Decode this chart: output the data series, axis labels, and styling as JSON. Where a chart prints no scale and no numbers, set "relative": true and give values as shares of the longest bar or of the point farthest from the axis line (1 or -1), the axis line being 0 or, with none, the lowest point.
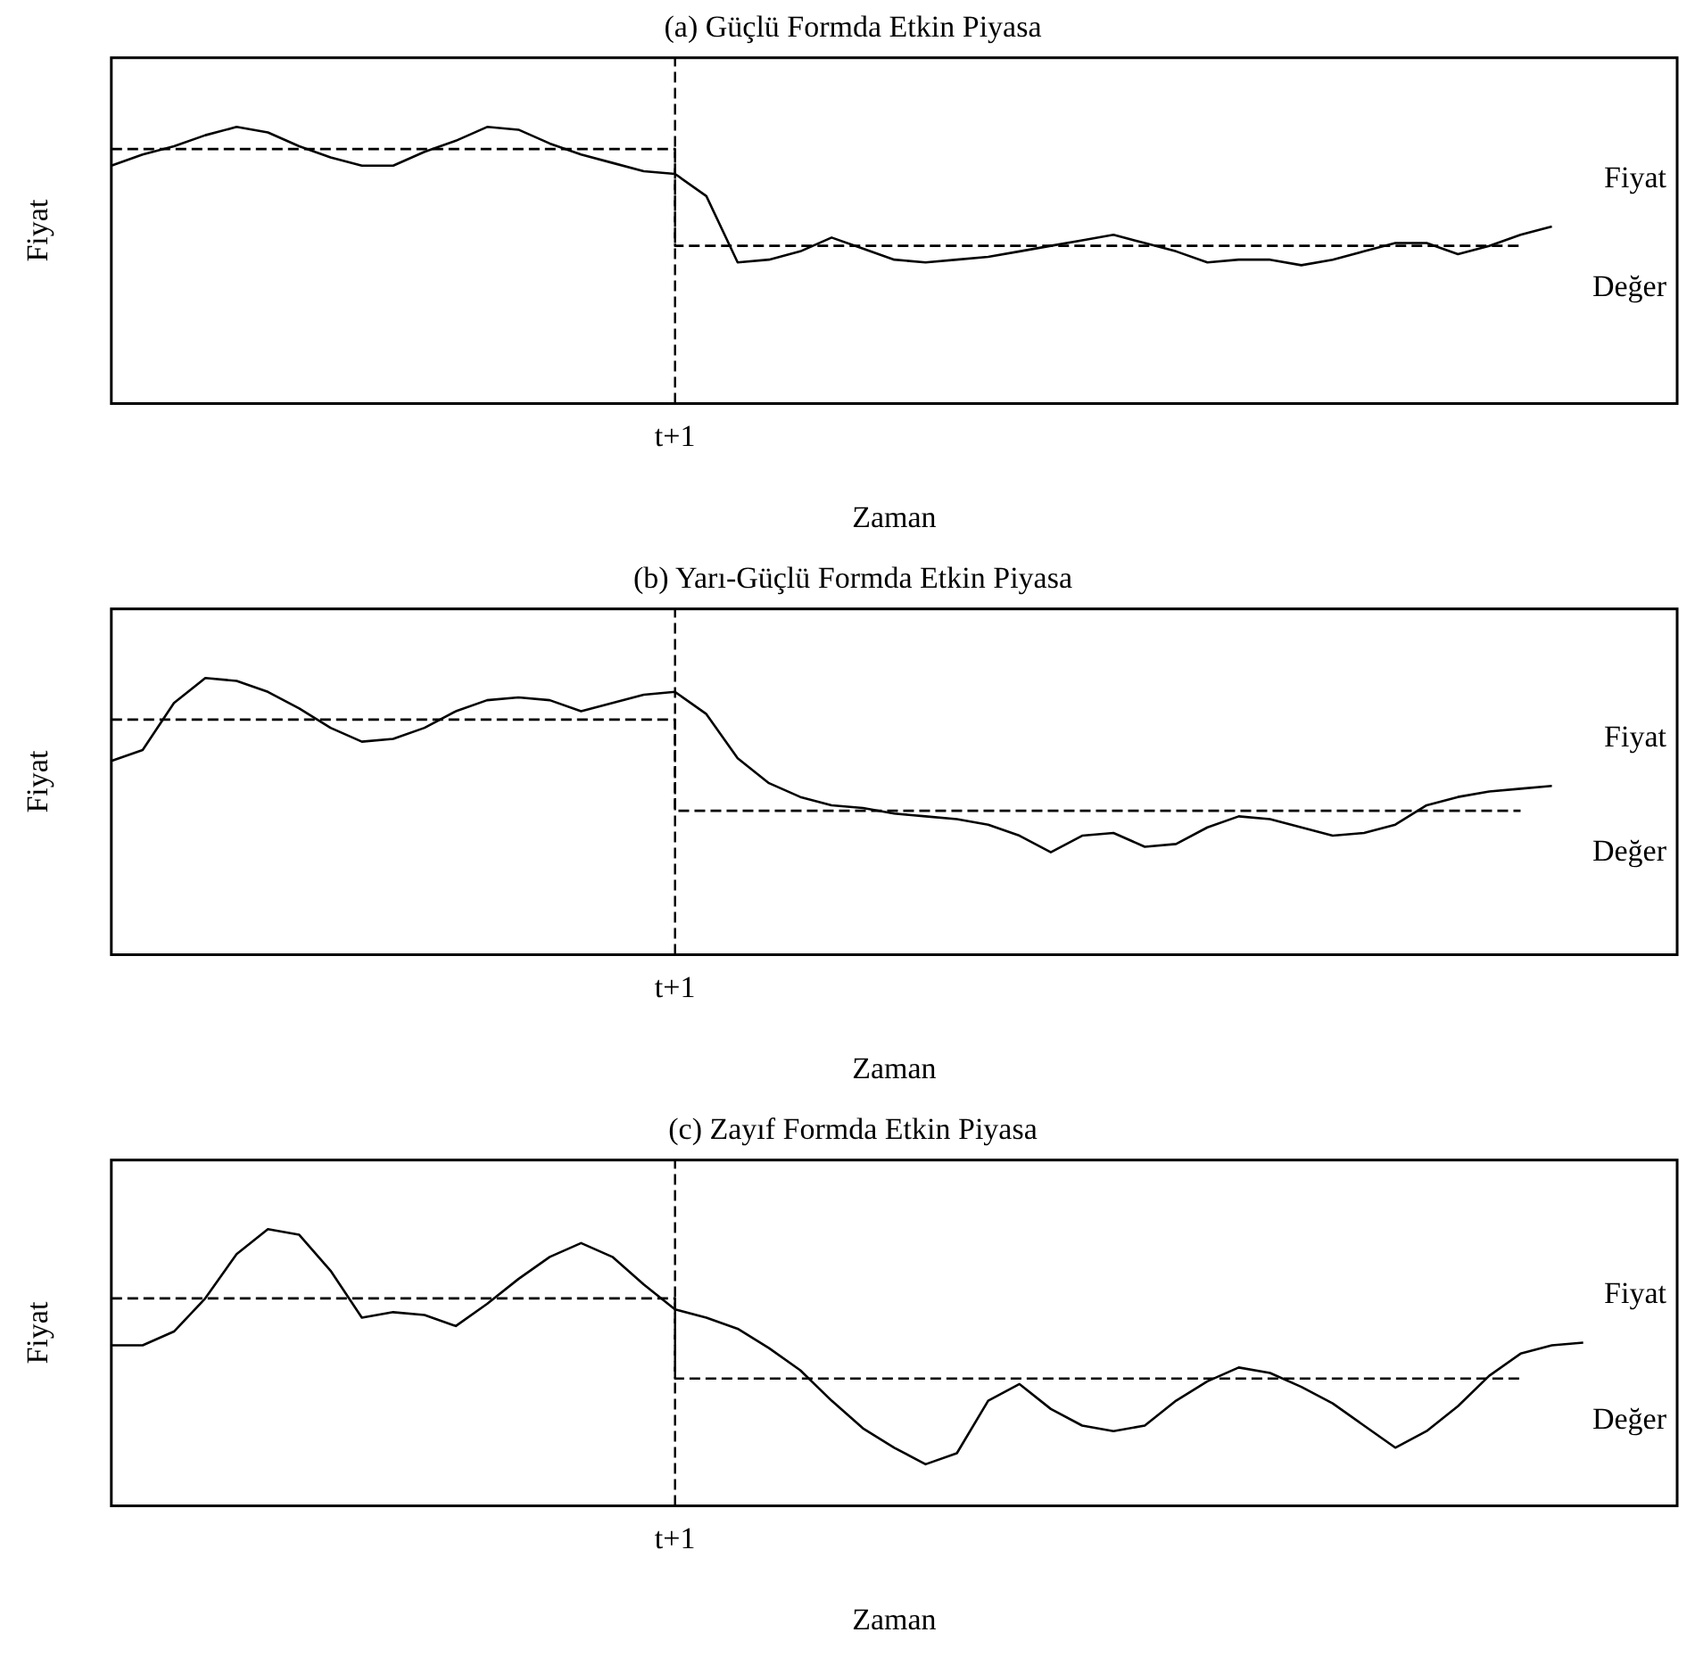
{
  "chart_data": [
    {
      "type": "line",
      "title": "(a) Güçlü Formda Etkin Piyasa",
      "xlabel": "Zaman",
      "ylabel": "Fiyat",
      "relative": true,
      "grid": false,
      "legend": false,
      "marker": "none",
      "categories": [
        null,
        null,
        null,
        null,
        null,
        null,
        null,
        null,
        null,
        null,
        null,
        null,
        null,
        null,
        null,
        null,
        null,
        null,
        null,
        null,
        null,
        null,
        null,
        null,
        null,
        null,
        null,
        null,
        null,
        null,
        null,
        null,
        null,
        null,
        null,
        null,
        null,
        null,
        null,
        null,
        null,
        null,
        null,
        null,
        null,
        null,
        null,
        null,
        null,
        null,
        null
      ],
      "annotations": [
        "t+1"
      ],
      "series": [
        {
          "name": "Fiyat",
          "color": "#000000",
          "line_style": "solid",
          "values": [
            0.86,
            0.9,
            0.93,
            0.97,
            1,
            0.98,
            0.93,
            0.89,
            0.86,
            0.86,
            0.91,
            0.95,
            1,
            0.99,
            0.94,
            0.9,
            0.87,
            0.84,
            0.83,
            0.75,
            0.51,
            0.52,
            0.55,
            0.6,
            0.56,
            0.52,
            0.51,
            0.52,
            0.53,
            0.55,
            0.57,
            0.59,
            0.61,
            0.58,
            0.55,
            0.51,
            0.52,
            0.52,
            0.5,
            0.52,
            0.55,
            0.58,
            0.58,
            0.54,
            0.57,
            0.61,
            0.64,
            null,
            null,
            null,
            null
          ]
        },
        {
          "name": "Değer",
          "type": "step",
          "color": "#000000",
          "line_style": "dashed",
          "values": [
            0.92,
            0.92,
            0.92,
            0.92,
            0.92,
            0.92,
            0.92,
            0.92,
            0.92,
            0.92,
            0.92,
            0.92,
            0.92,
            0.92,
            0.92,
            0.92,
            0.92,
            0.92,
            0.92,
            0.57,
            0.57,
            0.57,
            0.57,
            0.57,
            0.57,
            0.57,
            0.57,
            0.57,
            0.57,
            0.57,
            0.57,
            0.57,
            0.57,
            0.57,
            0.57,
            0.57,
            0.57,
            0.57,
            0.57,
            0.57,
            0.57,
            0.57,
            0.57,
            0.57,
            0.57,
            0.57,
            null,
            null,
            null,
            null,
            null
          ]
        }
      ]
    },
    {
      "type": "line",
      "title": "(b) Yarı-Güçlü Formda Etkin Piyasa",
      "xlabel": "Zaman",
      "ylabel": "Fiyat",
      "relative": true,
      "grid": false,
      "legend": false,
      "marker": "none",
      "categories": [
        null,
        null,
        null,
        null,
        null,
        null,
        null,
        null,
        null,
        null,
        null,
        null,
        null,
        null,
        null,
        null,
        null,
        null,
        null,
        null,
        null,
        null,
        null,
        null,
        null,
        null,
        null,
        null,
        null,
        null,
        null,
        null,
        null,
        null,
        null,
        null,
        null,
        null,
        null,
        null,
        null,
        null,
        null,
        null,
        null,
        null,
        null,
        null,
        null,
        null,
        null
      ],
      "annotations": [
        "t+1"
      ],
      "series": [
        {
          "name": "Fiyat",
          "color": "#000000",
          "line_style": "solid",
          "values": [
            0.7,
            0.74,
            0.91,
            1,
            0.99,
            0.95,
            0.89,
            0.82,
            0.77,
            0.78,
            0.82,
            0.88,
            0.92,
            0.93,
            0.92,
            0.88,
            0.91,
            0.94,
            0.95,
            0.87,
            0.71,
            0.62,
            0.57,
            0.54,
            0.53,
            0.51,
            0.5,
            0.49,
            0.47,
            0.43,
            0.37,
            0.43,
            0.44,
            0.39,
            0.4,
            0.46,
            0.5,
            0.49,
            0.46,
            0.43,
            0.44,
            0.47,
            0.54,
            0.57,
            0.59,
            0.6,
            0.61,
            null,
            null,
            null,
            null
          ]
        },
        {
          "name": "Değer",
          "type": "step",
          "color": "#000000",
          "line_style": "dashed",
          "values": [
            0.85,
            0.85,
            0.85,
            0.85,
            0.85,
            0.85,
            0.85,
            0.85,
            0.85,
            0.85,
            0.85,
            0.85,
            0.85,
            0.85,
            0.85,
            0.85,
            0.85,
            0.85,
            0.85,
            0.52,
            0.52,
            0.52,
            0.52,
            0.52,
            0.52,
            0.52,
            0.52,
            0.52,
            0.52,
            0.52,
            0.52,
            0.52,
            0.52,
            0.52,
            0.52,
            0.52,
            0.52,
            0.52,
            0.52,
            0.52,
            0.52,
            0.52,
            0.52,
            0.52,
            0.52,
            0.52,
            null,
            null,
            null,
            null,
            null
          ]
        }
      ]
    },
    {
      "type": "line",
      "title": "(c) Zayıf Formda Etkin Piyasa",
      "xlabel": "Zaman",
      "ylabel": "Fiyat",
      "relative": true,
      "grid": false,
      "legend": false,
      "marker": "none",
      "categories": [
        null,
        null,
        null,
        null,
        null,
        null,
        null,
        null,
        null,
        null,
        null,
        null,
        null,
        null,
        null,
        null,
        null,
        null,
        null,
        null,
        null,
        null,
        null,
        null,
        null,
        null,
        null,
        null,
        null,
        null,
        null,
        null,
        null,
        null,
        null,
        null,
        null,
        null,
        null,
        null,
        null,
        null,
        null,
        null,
        null,
        null,
        null,
        null,
        null,
        null,
        null
      ],
      "annotations": [
        "t+1"
      ],
      "series": [
        {
          "name": "Fiyat",
          "color": "#000000",
          "line_style": "solid",
          "values": [
            0.58,
            0.58,
            0.63,
            0.75,
            0.91,
            1,
            0.98,
            0.85,
            0.68,
            0.7,
            0.69,
            0.65,
            0.73,
            0.82,
            0.9,
            0.95,
            0.9,
            0.8,
            0.71,
            0.68,
            0.64,
            0.57,
            0.49,
            0.38,
            0.28,
            0.21,
            0.15,
            0.19,
            0.38,
            0.44,
            0.35,
            0.29,
            0.27,
            0.29,
            0.38,
            0.45,
            0.5,
            0.48,
            0.43,
            0.37,
            0.29,
            0.21,
            0.27,
            0.36,
            0.47,
            0.55,
            0.58,
            0.59,
            null,
            null,
            null
          ]
        },
        {
          "name": "Değer",
          "type": "step",
          "color": "#000000",
          "line_style": "dashed",
          "values": [
            0.75,
            0.75,
            0.75,
            0.75,
            0.75,
            0.75,
            0.75,
            0.75,
            0.75,
            0.75,
            0.75,
            0.75,
            0.75,
            0.75,
            0.75,
            0.75,
            0.75,
            0.75,
            0.75,
            0.46,
            0.46,
            0.46,
            0.46,
            0.46,
            0.46,
            0.46,
            0.46,
            0.46,
            0.46,
            0.46,
            0.46,
            0.46,
            0.46,
            0.46,
            0.46,
            0.46,
            0.46,
            0.46,
            0.46,
            0.46,
            0.46,
            0.46,
            0.46,
            0.46,
            0.46,
            0.46,
            null,
            null,
            null,
            null,
            null
          ]
        }
      ]
    }
  ]
}
